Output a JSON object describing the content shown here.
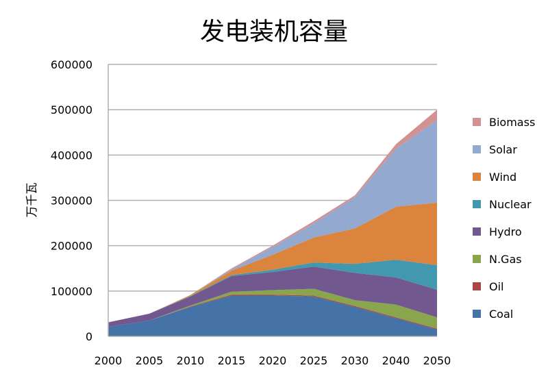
{
  "chart_data": {
    "type": "area",
    "stacked": true,
    "title": "发电装机容量",
    "xlabel": "",
    "ylabel": "万千瓦",
    "ylim": [
      0,
      600000
    ],
    "yticks": [
      0,
      100000,
      200000,
      300000,
      400000,
      500000,
      600000
    ],
    "grid": true,
    "legend_position": "right",
    "categories": [
      "2000",
      "2005",
      "2010",
      "2015",
      "2020",
      "2025",
      "2030",
      "2040",
      "2050"
    ],
    "series": [
      {
        "name": "Coal",
        "color": "#4572A7",
        "values": [
          21000,
          35000,
          65000,
          90000,
          90000,
          88000,
          65000,
          40000,
          15000
        ]
      },
      {
        "name": "Oil",
        "color": "#AA4643",
        "values": [
          0,
          0,
          1000,
          2000,
          2000,
          2000,
          2000,
          2000,
          2000
        ]
      },
      {
        "name": "N.Gas",
        "color": "#89A54E",
        "values": [
          0,
          0,
          2000,
          6600,
          10000,
          15000,
          13000,
          28000,
          25000
        ]
      },
      {
        "name": "Hydro",
        "color": "#71588F",
        "values": [
          10000,
          15000,
          20000,
          34400,
          40000,
          49000,
          60000,
          60000,
          61000
        ]
      },
      {
        "name": "Nuclear",
        "color": "#4198AF",
        "values": [
          0,
          0,
          1000,
          2000,
          5000,
          9000,
          20000,
          39000,
          54000
        ]
      },
      {
        "name": "Wind",
        "color": "#DB843D",
        "values": [
          0,
          0,
          2000,
          10000,
          33000,
          55000,
          78000,
          117000,
          138000
        ]
      },
      {
        "name": "Solar",
        "color": "#93A9CF",
        "values": [
          0,
          0,
          0,
          3000,
          17000,
          31000,
          69000,
          128000,
          182000
        ]
      },
      {
        "name": "Biomass",
        "color": "#D19392",
        "values": [
          0,
          0,
          500,
          2000,
          3000,
          5000,
          4000,
          10000,
          23000
        ]
      }
    ]
  }
}
